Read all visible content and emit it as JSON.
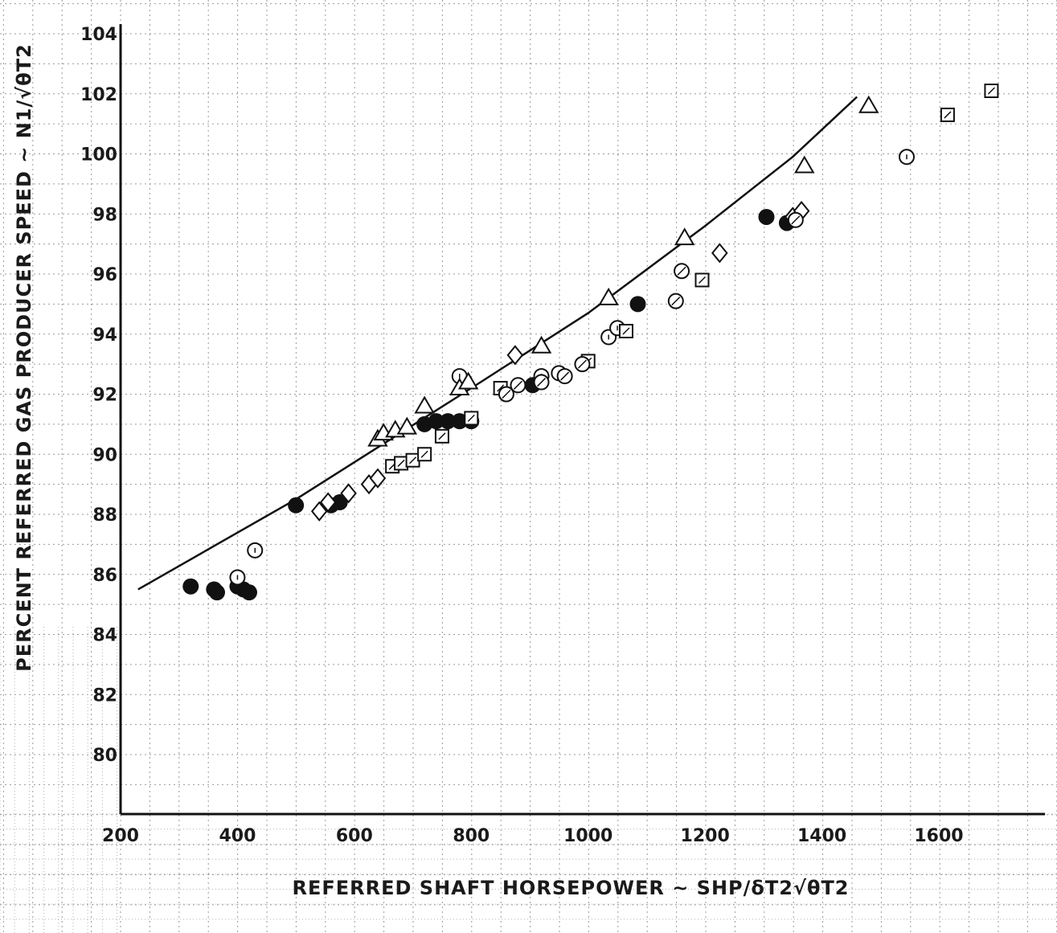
{
  "chart_data": {
    "type": "scatter",
    "xlabel": "REFERRED SHAFT HORSEPOWER ~ SHP/δT2√θT2",
    "ylabel": "PERCENT REFERRED GAS PRODUCER SPEED ~ N1/√θT2",
    "xlim": [
      200,
      1700
    ],
    "ylim": [
      78,
      104
    ],
    "x_ticks": [
      "200",
      "400",
      "600",
      "800",
      "1000",
      "1200",
      "1400",
      "1600"
    ],
    "y_ticks": [
      "80",
      "82",
      "84",
      "86",
      "88",
      "90",
      "92",
      "94",
      "96",
      "98",
      "100",
      "102",
      "104"
    ],
    "grid": true,
    "reference_line": {
      "x": [
        230,
        500,
        800,
        1000,
        1200,
        1350,
        1460
      ],
      "y": [
        85.5,
        88.5,
        92.2,
        94.7,
        97.6,
        99.9,
        101.9
      ]
    },
    "series": [
      {
        "marker": "filled-circle",
        "points": [
          [
            320,
            85.6
          ],
          [
            360,
            85.5
          ],
          [
            365,
            85.4
          ],
          [
            400,
            85.6
          ],
          [
            410,
            85.5
          ],
          [
            420,
            85.4
          ],
          [
            500,
            88.3
          ],
          [
            560,
            88.3
          ],
          [
            575,
            88.4
          ],
          [
            720,
            91.0
          ],
          [
            740,
            91.1
          ],
          [
            760,
            91.1
          ],
          [
            780,
            91.1
          ],
          [
            800,
            91.1
          ],
          [
            905,
            92.3
          ],
          [
            1085,
            95.0
          ],
          [
            1305,
            97.9
          ],
          [
            1340,
            97.7
          ]
        ]
      },
      {
        "marker": "open-circle",
        "points": [
          [
            430,
            86.8
          ],
          [
            400,
            85.9
          ],
          [
            780,
            92.6
          ],
          [
            920,
            92.6
          ],
          [
            950,
            92.7
          ],
          [
            1035,
            93.9
          ],
          [
            1050,
            94.2
          ],
          [
            1545,
            99.9
          ]
        ]
      },
      {
        "marker": "triangle",
        "points": [
          [
            640,
            90.5
          ],
          [
            650,
            90.7
          ],
          [
            670,
            90.8
          ],
          [
            690,
            90.9
          ],
          [
            720,
            91.6
          ],
          [
            780,
            92.2
          ],
          [
            795,
            92.4
          ],
          [
            920,
            93.6
          ],
          [
            1035,
            95.2
          ],
          [
            1165,
            97.2
          ],
          [
            1370,
            99.6
          ],
          [
            1480,
            101.6
          ]
        ]
      },
      {
        "marker": "diamond",
        "points": [
          [
            540,
            88.1
          ],
          [
            555,
            88.4
          ],
          [
            590,
            88.7
          ],
          [
            625,
            89.0
          ],
          [
            640,
            89.2
          ],
          [
            875,
            93.3
          ],
          [
            1225,
            96.7
          ],
          [
            1350,
            97.9
          ],
          [
            1365,
            98.1
          ]
        ]
      },
      {
        "marker": "flagged-square",
        "points": [
          [
            665,
            89.6
          ],
          [
            680,
            89.7
          ],
          [
            700,
            89.8
          ],
          [
            720,
            90.0
          ],
          [
            750,
            90.6
          ],
          [
            800,
            91.2
          ],
          [
            850,
            92.2
          ],
          [
            1000,
            93.1
          ],
          [
            1065,
            94.1
          ],
          [
            1195,
            95.8
          ],
          [
            1615,
            101.3
          ],
          [
            1690,
            102.1
          ]
        ]
      },
      {
        "marker": "flagged-circle",
        "points": [
          [
            860,
            92.0
          ],
          [
            880,
            92.3
          ],
          [
            920,
            92.4
          ],
          [
            960,
            92.6
          ],
          [
            990,
            93.0
          ],
          [
            1160,
            96.1
          ],
          [
            1150,
            95.1
          ],
          [
            1355,
            97.8
          ]
        ]
      }
    ]
  }
}
